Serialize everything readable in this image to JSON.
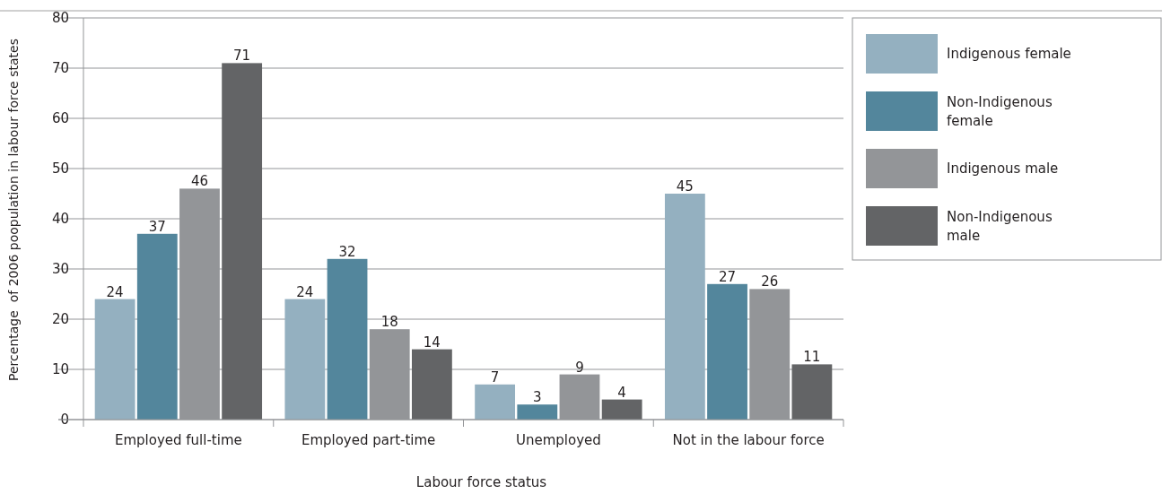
{
  "chart_data": {
    "type": "bar",
    "xlabel": "Labour force status",
    "ylabel": "Percentage  of 2006 poopulation in labour force states",
    "categories": [
      "Employed full-time",
      "Employed part-time",
      "Unemployed",
      "Not in the labour force"
    ],
    "series": [
      {
        "name": "Indigenous female",
        "color": "#94b0c0",
        "values": [
          24,
          24,
          7,
          45
        ]
      },
      {
        "name": "Non-Indigenous female",
        "color": "#53869c",
        "values": [
          37,
          32,
          3,
          27
        ]
      },
      {
        "name": "Indigenous male",
        "color": "#939598",
        "values": [
          46,
          18,
          9,
          26
        ]
      },
      {
        "name": "Non-Indigenous male",
        "color": "#636466",
        "values": [
          71,
          14,
          4,
          11
        ]
      }
    ],
    "ylim": [
      0,
      80
    ],
    "yticks": [
      0,
      10,
      20,
      30,
      40,
      50,
      60,
      70,
      80
    ],
    "grid": "y",
    "legend": "top right",
    "data_labels": true
  }
}
